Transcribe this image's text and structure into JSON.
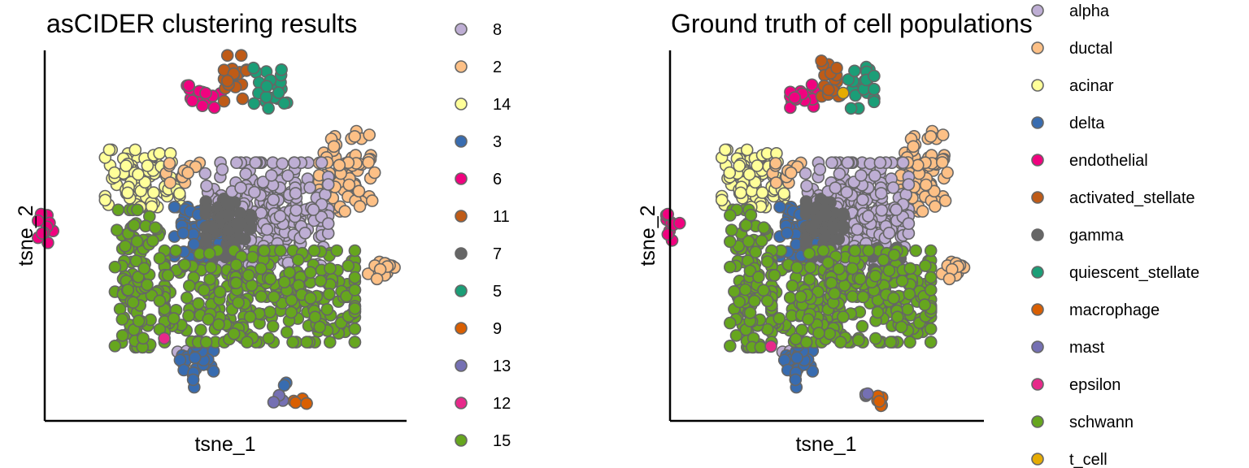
{
  "figure": {
    "panels": [
      {
        "title": "asCIDER clustering results",
        "xlabel": "tsne_1",
        "ylabel": "tsne_2",
        "legend": {
          "placement": "right",
          "entries": [
            {
              "label": "8",
              "color": "#BEAED4"
            },
            {
              "label": "2",
              "color": "#FDC086"
            },
            {
              "label": "14",
              "color": "#FFFF99"
            },
            {
              "label": "3",
              "color": "#386CB0"
            },
            {
              "label": "6",
              "color": "#F0027F"
            },
            {
              "label": "11",
              "color": "#BF5B17"
            },
            {
              "label": "7",
              "color": "#666666"
            },
            {
              "label": "5",
              "color": "#1B9E77"
            },
            {
              "label": "9",
              "color": "#D95F02"
            },
            {
              "label": "13",
              "color": "#7570B3"
            },
            {
              "label": "12",
              "color": "#E7298A"
            },
            {
              "label": "15",
              "color": "#66A61E"
            }
          ]
        }
      },
      {
        "title": "Ground truth of cell populations",
        "xlabel": "tsne_1",
        "ylabel": "tsne_2",
        "legend": {
          "placement": "right",
          "entries": [
            {
              "label": "alpha",
              "color": "#BEAED4"
            },
            {
              "label": "ductal",
              "color": "#FDC086"
            },
            {
              "label": "acinar",
              "color": "#FFFF99"
            },
            {
              "label": "delta",
              "color": "#386CB0"
            },
            {
              "label": "endothelial",
              "color": "#F0027F"
            },
            {
              "label": "activated_stellate",
              "color": "#BF5B17"
            },
            {
              "label": "gamma",
              "color": "#666666"
            },
            {
              "label": "quiescent_stellate",
              "color": "#1B9E77"
            },
            {
              "label": "macrophage",
              "color": "#D95F02"
            },
            {
              "label": "mast",
              "color": "#7570B3"
            },
            {
              "label": "epsilon",
              "color": "#E7298A"
            },
            {
              "label": "schwann",
              "color": "#66A61E"
            },
            {
              "label": "t_cell",
              "color": "#E6AB02"
            }
          ]
        }
      }
    ]
  },
  "chart_data": [
    {
      "type": "scatter",
      "title": "asCIDER clustering results",
      "xlabel": "tsne_1",
      "ylabel": "tsne_2",
      "grid": false,
      "xlim": [
        -50,
        50
      ],
      "ylim": [
        -50,
        50
      ],
      "legend_position": "right",
      "point_edge_color": "#666666",
      "clusters": [
        {
          "name": "14",
          "color": "#FFFF99",
          "center": [
            -25,
            16
          ],
          "spread": [
            7,
            5
          ],
          "n": 90
        },
        {
          "name": "2",
          "color": "#FDC086",
          "center": [
            -14,
            18
          ],
          "spread": [
            3,
            2
          ],
          "n": 12
        },
        {
          "name": "2",
          "color": "#FDC086",
          "center": [
            33,
            18
          ],
          "spread": [
            5,
            7
          ],
          "n": 70
        },
        {
          "name": "2",
          "color": "#FDC086",
          "center": [
            43,
            -9
          ],
          "spread": [
            2.5,
            2
          ],
          "n": 14
        },
        {
          "name": "8",
          "color": "#BEAED4",
          "center": [
            10,
            6
          ],
          "spread": [
            11,
            9
          ],
          "n": 260
        },
        {
          "name": "8",
          "color": "#BEAED4",
          "center": [
            -12,
            -33
          ],
          "spread": [
            3,
            2
          ],
          "n": 8
        },
        {
          "name": "3",
          "color": "#386CB0",
          "center": [
            -10,
            0
          ],
          "spread": [
            4,
            5
          ],
          "n": 60
        },
        {
          "name": "3",
          "color": "#386CB0",
          "center": [
            -10,
            -36
          ],
          "spread": [
            3,
            4
          ],
          "n": 26
        },
        {
          "name": "3",
          "color": "#386CB0",
          "center": [
            14,
            -42
          ],
          "spread": [
            1,
            1
          ],
          "n": 2
        },
        {
          "name": "7",
          "color": "#666666",
          "center": [
            -1,
            2
          ],
          "spread": [
            4,
            5
          ],
          "n": 60
        },
        {
          "name": "15",
          "color": "#66A61E",
          "center": [
            8,
            -17
          ],
          "spread": [
            17,
            8
          ],
          "n": 320
        },
        {
          "name": "15",
          "color": "#66A61E",
          "center": [
            -27,
            -12
          ],
          "spread": [
            4,
            12
          ],
          "n": 110
        },
        {
          "name": "6",
          "color": "#F0027F",
          "center": [
            -53,
            2
          ],
          "spread": [
            1.5,
            2.5
          ],
          "n": 10
        },
        {
          "name": "6",
          "color": "#F0027F",
          "center": [
            -8,
            39
          ],
          "spread": [
            3,
            2
          ],
          "n": 16
        },
        {
          "name": "11",
          "color": "#BF5B17",
          "center": [
            1,
            44
          ],
          "spread": [
            2,
            4
          ],
          "n": 18
        },
        {
          "name": "5",
          "color": "#1B9E77",
          "center": [
            11,
            42
          ],
          "spread": [
            3,
            4
          ],
          "n": 22
        },
        {
          "name": "9",
          "color": "#D95F02",
          "center": [
            19,
            -46
          ],
          "spread": [
            1.5,
            1
          ],
          "n": 6
        },
        {
          "name": "13",
          "color": "#7570B3",
          "center": [
            13,
            -45
          ],
          "spread": [
            1,
            1
          ],
          "n": 3
        },
        {
          "name": "12",
          "color": "#E7298A",
          "center": [
            -20,
            -30
          ],
          "spread": [
            1,
            1
          ],
          "n": 1
        }
      ]
    },
    {
      "type": "scatter",
      "title": "Ground truth of cell populations",
      "xlabel": "tsne_1",
      "ylabel": "tsne_2",
      "grid": false,
      "xlim": [
        -50,
        50
      ],
      "ylim": [
        -50,
        50
      ],
      "legend_position": "right",
      "point_edge_color": "#666666",
      "clusters": [
        {
          "name": "acinar",
          "color": "#FFFF99",
          "center": [
            -25,
            16
          ],
          "spread": [
            7,
            5
          ],
          "n": 90
        },
        {
          "name": "ductal",
          "color": "#FDC086",
          "center": [
            -14,
            18
          ],
          "spread": [
            3,
            2
          ],
          "n": 12
        },
        {
          "name": "ductal",
          "color": "#FDC086",
          "center": [
            33,
            18
          ],
          "spread": [
            5,
            7
          ],
          "n": 70
        },
        {
          "name": "ductal",
          "color": "#FDC086",
          "center": [
            43,
            -9
          ],
          "spread": [
            2.5,
            2
          ],
          "n": 14
        },
        {
          "name": "alpha",
          "color": "#BEAED4",
          "center": [
            10,
            6
          ],
          "spread": [
            11,
            9
          ],
          "n": 260
        },
        {
          "name": "alpha",
          "color": "#BEAED4",
          "center": [
            -12,
            -33
          ],
          "spread": [
            3,
            2
          ],
          "n": 8
        },
        {
          "name": "delta",
          "color": "#386CB0",
          "center": [
            -10,
            0
          ],
          "spread": [
            4,
            5
          ],
          "n": 60
        },
        {
          "name": "delta",
          "color": "#386CB0",
          "center": [
            -10,
            -36
          ],
          "spread": [
            3,
            4
          ],
          "n": 26
        },
        {
          "name": "gamma",
          "color": "#666666",
          "center": [
            -1,
            2
          ],
          "spread": [
            4,
            5
          ],
          "n": 60
        },
        {
          "name": "gamma",
          "color": "#666666",
          "center": [
            20,
            -8
          ],
          "spread": [
            3,
            3
          ],
          "n": 20
        },
        {
          "name": "schwann",
          "color": "#66A61E",
          "center": [
            8,
            -17
          ],
          "spread": [
            17,
            8
          ],
          "n": 320
        },
        {
          "name": "schwann",
          "color": "#66A61E",
          "center": [
            -27,
            -12
          ],
          "spread": [
            4,
            12
          ],
          "n": 110
        },
        {
          "name": "endothelial",
          "color": "#F0027F",
          "center": [
            -53,
            2
          ],
          "spread": [
            1.5,
            2.5
          ],
          "n": 10
        },
        {
          "name": "endothelial",
          "color": "#F0027F",
          "center": [
            -8,
            39
          ],
          "spread": [
            3,
            2
          ],
          "n": 16
        },
        {
          "name": "activated_stellate",
          "color": "#BF5B17",
          "center": [
            1,
            44
          ],
          "spread": [
            2,
            4
          ],
          "n": 18
        },
        {
          "name": "quiescent_stellate",
          "color": "#1B9E77",
          "center": [
            11,
            42
          ],
          "spread": [
            3,
            4
          ],
          "n": 22
        },
        {
          "name": "macrophage",
          "color": "#D95F02",
          "center": [
            19,
            -46
          ],
          "spread": [
            1.5,
            1
          ],
          "n": 6
        },
        {
          "name": "mast",
          "color": "#7570B3",
          "center": [
            13,
            -45
          ],
          "spread": [
            1,
            1
          ],
          "n": 3
        },
        {
          "name": "epsilon",
          "color": "#E7298A",
          "center": [
            -20,
            -30
          ],
          "spread": [
            1,
            1
          ],
          "n": 1
        },
        {
          "name": "t_cell",
          "color": "#E6AB02",
          "center": [
            5,
            40
          ],
          "spread": [
            0.5,
            0.5
          ],
          "n": 1
        }
      ]
    }
  ]
}
